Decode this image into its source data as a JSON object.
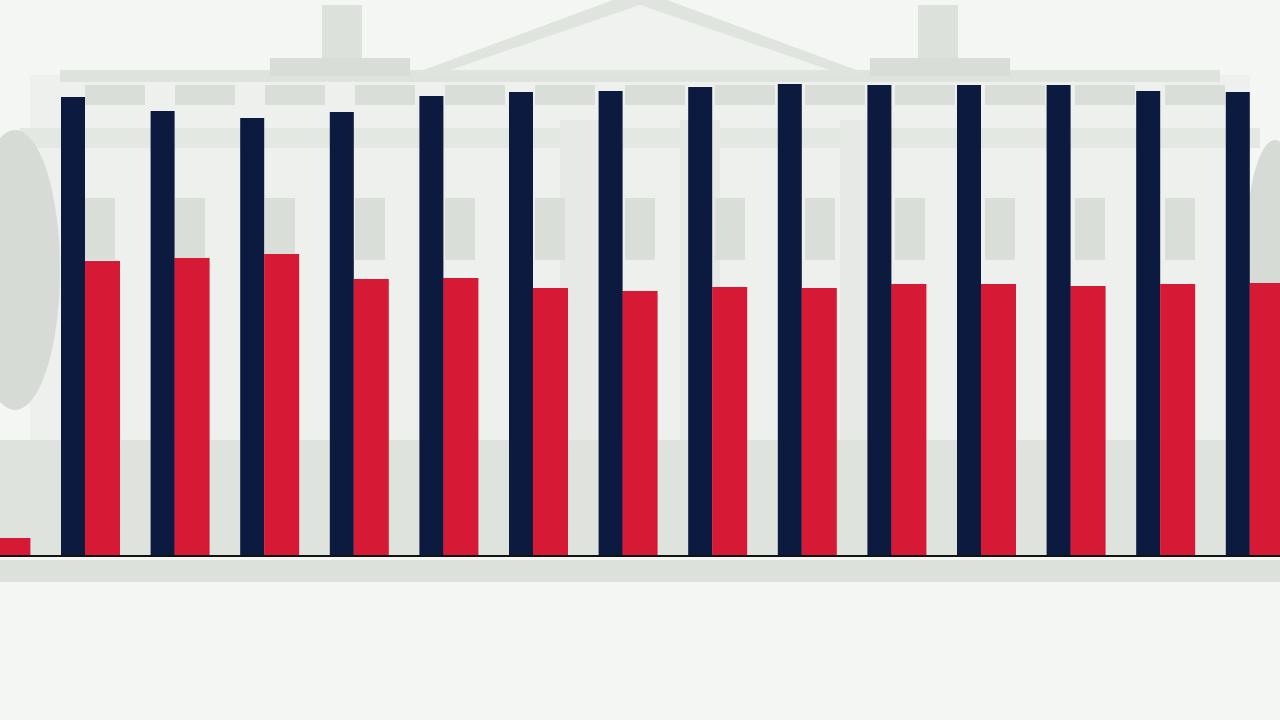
{
  "chart_data": {
    "type": "bar",
    "categories": [
      null,
      null,
      null,
      null,
      null,
      null,
      null,
      null,
      null,
      null,
      null,
      null,
      null,
      null,
      null
    ],
    "series": [
      {
        "color": "#0b1a3e",
        "values": [
          null,
          458,
          444,
          437,
          443,
          459,
          463,
          464,
          468,
          471,
          470,
          470,
          470,
          464,
          463
        ]
      },
      {
        "color": "#d61a35",
        "values": [
          17,
          294,
          297,
          301,
          276,
          277,
          267,
          264,
          268,
          267,
          271,
          271,
          269,
          271,
          272
        ]
      }
    ],
    "ylim": [
      0,
      480
    ]
  }
}
